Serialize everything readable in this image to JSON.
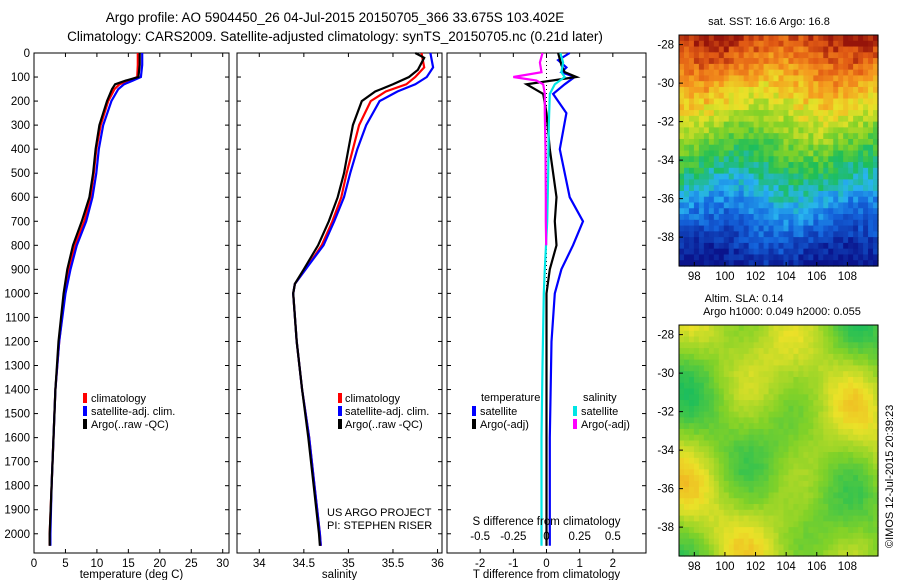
{
  "header": {
    "line1": "Argo profile: AO 5904450_26 04-Jul-2015 20150705_366 33.675S 103.402E",
    "line2": "Climatology: CARS2009. Satellite-adjusted climatology: synTS_20150705.nc (0.21d later)"
  },
  "colors": {
    "climatology": "#ff0000",
    "satellite": "#0000ff",
    "argo": "#000000",
    "sal_satellite": "#00e5e5",
    "sal_argo": "#ff00ff"
  },
  "chart_data": [
    {
      "type": "line",
      "id": "temperature",
      "xlabel": "temperature (deg C)",
      "ylabel": "",
      "xlim": [
        0,
        31
      ],
      "xticks": [
        0,
        5,
        10,
        15,
        20,
        25,
        30
      ],
      "ylim": [
        2080,
        0
      ],
      "yticks": [
        0,
        100,
        200,
        300,
        400,
        500,
        600,
        700,
        800,
        900,
        1000,
        1100,
        1200,
        1300,
        1400,
        1500,
        1600,
        1700,
        1800,
        1900,
        2000
      ],
      "legend": [
        "climatology",
        "satellite-adj. clim.",
        "Argo(..raw -QC)"
      ],
      "series": [
        {
          "name": "climatology",
          "color": "#ff0000",
          "depth": [
            0,
            50,
            100,
            115,
            130,
            150,
            200,
            300,
            400,
            500,
            600,
            700,
            800,
            900,
            1000,
            1200,
            1400,
            1600,
            1800,
            2000,
            2050
          ],
          "values": [
            16.5,
            16.5,
            16.4,
            15,
            13.6,
            12.8,
            11.8,
            10.6,
            9.9,
            9.5,
            9.0,
            8.0,
            6.5,
            5.6,
            4.9,
            4.0,
            3.4,
            3.1,
            2.8,
            2.5,
            2.5
          ]
        },
        {
          "name": "satellite-adj. clim.",
          "color": "#0000ff",
          "depth": [
            0,
            50,
            100,
            115,
            130,
            150,
            200,
            300,
            400,
            500,
            600,
            700,
            800,
            900,
            1000,
            1200,
            1400,
            1600,
            1800,
            2000,
            2050
          ],
          "values": [
            17.2,
            17.2,
            17.0,
            15.7,
            14.3,
            13.4,
            12.3,
            11.0,
            10.3,
            9.9,
            9.3,
            8.3,
            6.8,
            5.8,
            5.0,
            4.0,
            3.4,
            3.1,
            2.8,
            2.6,
            2.6
          ]
        },
        {
          "name": "Argo(..raw -QC)",
          "color": "#000000",
          "depth": [
            0,
            50,
            100,
            115,
            130,
            150,
            200,
            300,
            400,
            500,
            600,
            700,
            800,
            900,
            1000,
            1200,
            1400,
            1600,
            1800,
            2000,
            2050
          ],
          "values": [
            16.8,
            16.8,
            16.6,
            14.6,
            12.9,
            12.4,
            11.6,
            10.4,
            9.8,
            9.4,
            8.8,
            7.6,
            6.2,
            5.3,
            4.7,
            3.9,
            3.4,
            3.1,
            2.8,
            2.5,
            2.5
          ]
        }
      ]
    },
    {
      "type": "line",
      "id": "salinity",
      "xlabel": "salinity",
      "ylabel": "",
      "xlim": [
        33.75,
        36.05
      ],
      "xticks": [
        34,
        34.5,
        35,
        35.5,
        36
      ],
      "ylim": [
        2080,
        0
      ],
      "legend": [
        "climatology",
        "satellite-adj. clim.",
        "Argo(..raw -QC)"
      ],
      "annotation": [
        "US ARGO PROJECT",
        "PI: STEPHEN RISER"
      ],
      "series": [
        {
          "name": "climatology",
          "color": "#ff0000",
          "depth": [
            0,
            60,
            100,
            130,
            160,
            200,
            300,
            400,
            500,
            600,
            700,
            800,
            900,
            960,
            1000,
            1200,
            1400,
            1600,
            1800,
            2000,
            2050
          ],
          "values": [
            35.82,
            35.85,
            35.75,
            35.65,
            35.42,
            35.25,
            35.12,
            35.05,
            34.98,
            34.92,
            34.82,
            34.7,
            34.52,
            34.4,
            34.38,
            34.42,
            34.48,
            34.56,
            34.62,
            34.68,
            34.69
          ]
        },
        {
          "name": "satellite-adj. clim.",
          "color": "#0000ff",
          "depth": [
            0,
            60,
            100,
            130,
            160,
            200,
            300,
            400,
            500,
            600,
            700,
            800,
            900,
            960,
            1000,
            1200,
            1400,
            1600,
            1800,
            2000,
            2050
          ],
          "values": [
            35.92,
            35.95,
            35.88,
            35.75,
            35.55,
            35.35,
            35.2,
            35.1,
            35.02,
            34.95,
            34.84,
            34.72,
            34.52,
            34.4,
            34.38,
            34.42,
            34.48,
            34.56,
            34.62,
            34.68,
            34.69
          ]
        },
        {
          "name": "Argo(..raw -QC)",
          "color": "#000000",
          "depth": [
            0,
            20,
            70,
            100,
            130,
            160,
            200,
            300,
            400,
            500,
            600,
            700,
            800,
            900,
            960,
            1000,
            1200,
            1400,
            1600,
            1800,
            2000,
            2050
          ],
          "values": [
            35.75,
            35.85,
            35.78,
            35.68,
            35.5,
            35.3,
            35.15,
            35.05,
            35.0,
            34.95,
            34.88,
            34.78,
            34.66,
            34.5,
            34.4,
            34.38,
            34.42,
            34.48,
            34.55,
            34.61,
            34.67,
            34.68
          ]
        }
      ]
    },
    {
      "type": "line",
      "id": "difference",
      "xlabel": "T difference from climatology",
      "xlabel_top": "S difference from climatology",
      "xlim": [
        -3,
        3
      ],
      "xticks": [
        -2,
        -1,
        0,
        1,
        2
      ],
      "xticks_top": [
        "-0.5",
        "-0.25",
        "0",
        "0.25",
        "0.5"
      ],
      "ylim": [
        2080,
        0
      ],
      "legend_groups": [
        "temperature",
        "salinity"
      ],
      "legend": [
        "satellite",
        "Argo(-adj)",
        "satellite",
        "Argo(-adj)"
      ],
      "series": [
        {
          "name": "satellite",
          "group": "temperature",
          "color": "#0000ff",
          "depth": [
            0,
            30,
            60,
            80,
            100,
            130,
            170,
            250,
            400,
            600,
            700,
            800,
            900,
            1000,
            1200,
            1600,
            2000,
            2050
          ],
          "values": [
            0.7,
            0.35,
            0.6,
            0.45,
            0.85,
            0.55,
            0.2,
            0.6,
            0.4,
            0.7,
            1.1,
            0.8,
            0.45,
            0.25,
            0.15,
            0.1,
            0.1,
            0.1
          ]
        },
        {
          "name": "Argo(-adj)",
          "group": "temperature",
          "color": "#000000",
          "depth": [
            0,
            50,
            80,
            100,
            130,
            170,
            250,
            400,
            600,
            700,
            800,
            900,
            1000,
            1200,
            1600,
            2000,
            2050
          ],
          "values": [
            0.35,
            0.45,
            0.55,
            0.9,
            -0.6,
            -0.1,
            0.0,
            0.1,
            0.3,
            0.25,
            0.3,
            0.1,
            0.0,
            0.0,
            0.0,
            0.0,
            0.0
          ]
        },
        {
          "name": "satellite",
          "group": "salinity",
          "color": "#00e5e5",
          "depth": [
            0,
            40,
            80,
            100,
            130,
            170,
            300,
            500,
            700,
            900,
            1000,
            1300,
            1600,
            2000,
            2050
          ],
          "values": [
            0.42,
            0.5,
            0.45,
            0.55,
            0.25,
            0.1,
            0.07,
            0.05,
            0.02,
            -0.05,
            -0.08,
            -0.12,
            -0.15,
            -0.15,
            -0.15
          ]
        },
        {
          "name": "Argo(-adj)",
          "group": "salinity",
          "color": "#ff00ff",
          "depth": [
            0,
            40,
            80,
            100,
            115,
            130,
            170,
            250,
            400,
            600,
            700,
            800
          ],
          "values": [
            -0.12,
            -0.2,
            -0.15,
            -1.0,
            -0.3,
            -0.1,
            -0.05,
            -0.05,
            -0.03,
            -0.02,
            -0.02,
            -0.01
          ]
        }
      ]
    },
    {
      "type": "heatmap",
      "id": "sst-map",
      "title": "sat. SST: 16.6  Argo: 16.8",
      "xlim": [
        97,
        110
      ],
      "xticks": [
        98,
        100,
        102,
        104,
        106,
        108
      ],
      "ylim": [
        -39.5,
        -27.5
      ],
      "yticks": [
        -28,
        -30,
        -32,
        -34,
        -36,
        -38
      ]
    },
    {
      "type": "heatmap",
      "id": "sla-map",
      "title_lines": [
        "Altim. SLA: 0.14",
        "Argo h1000: 0.049 h2000: 0.055"
      ],
      "xlim": [
        97,
        110
      ],
      "xticks": [
        98,
        100,
        102,
        104,
        106,
        108
      ],
      "ylim": [
        -39.5,
        -27.5
      ],
      "yticks": [
        -28,
        -30,
        -32,
        -34,
        -36,
        -38
      ]
    }
  ],
  "credit": "©IMOS 12-Jul-2015 20:39:23"
}
